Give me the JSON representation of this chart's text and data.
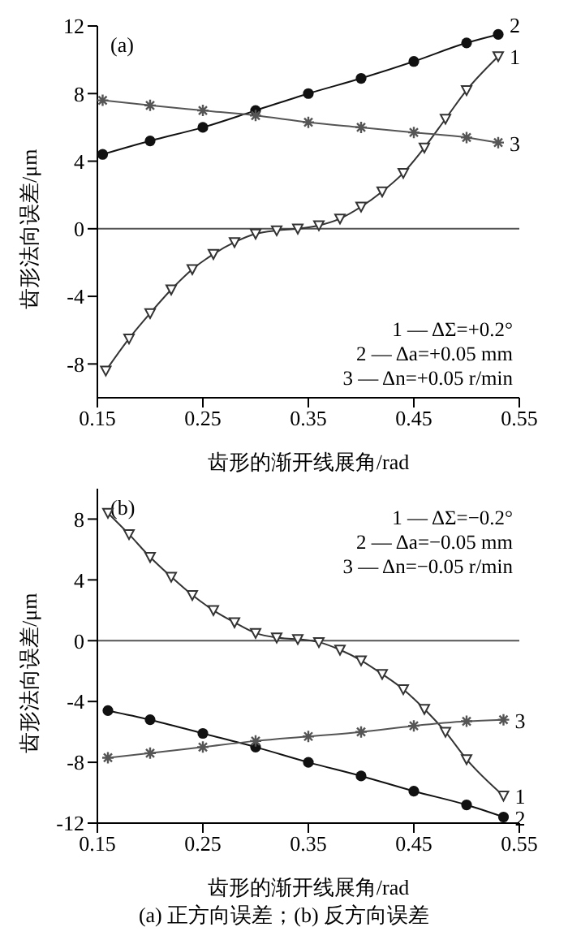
{
  "chart_data": [
    {
      "type": "line",
      "title": "(a)",
      "xlabel": "齿形的渐开线展角/rad",
      "ylabel": "齿形法向误差/μm",
      "xlim": [
        0.15,
        0.55
      ],
      "xticks": [
        0.15,
        0.25,
        0.35,
        0.45,
        0.55
      ],
      "ylim": [
        -10,
        12
      ],
      "yticks": [
        -8,
        -4,
        0,
        4,
        8,
        12
      ],
      "grid": false,
      "legend": false,
      "ref_lines": [
        {
          "axis": "y",
          "value": 0,
          "color": "#555555"
        }
      ],
      "annotations": [
        "1 — ΔΣ=+0.2°",
        "2 — Δa=+0.05 mm",
        "3 — Δn=+0.05 r/min"
      ],
      "series": [
        {
          "name": "1",
          "color": "#333333",
          "marker": "triangle",
          "x": [
            0.158,
            0.18,
            0.2,
            0.22,
            0.24,
            0.26,
            0.28,
            0.3,
            0.32,
            0.34,
            0.36,
            0.38,
            0.4,
            0.42,
            0.44,
            0.46,
            0.48,
            0.5,
            0.53
          ],
          "values": [
            -8.4,
            -6.5,
            -5.0,
            -3.6,
            -2.4,
            -1.5,
            -0.8,
            -0.3,
            -0.1,
            0.0,
            0.2,
            0.6,
            1.3,
            2.2,
            3.3,
            4.8,
            6.5,
            8.2,
            10.2
          ]
        },
        {
          "name": "2",
          "color": "#111111",
          "marker": "circle",
          "x": [
            0.155,
            0.2,
            0.25,
            0.3,
            0.35,
            0.4,
            0.45,
            0.5,
            0.53
          ],
          "values": [
            4.4,
            5.2,
            6.0,
            7.0,
            8.0,
            8.9,
            9.9,
            11.0,
            11.5
          ]
        },
        {
          "name": "3",
          "color": "#555555",
          "marker": "cross",
          "x": [
            0.155,
            0.2,
            0.25,
            0.3,
            0.35,
            0.4,
            0.45,
            0.5,
            0.53
          ],
          "values": [
            7.6,
            7.3,
            7.0,
            6.7,
            6.3,
            6.0,
            5.7,
            5.4,
            5.1
          ]
        }
      ]
    },
    {
      "type": "line",
      "title": "(b)",
      "xlabel": "齿形的渐开线展角/rad",
      "ylabel": "齿形法向误差/μm",
      "xlim": [
        0.15,
        0.55
      ],
      "xticks": [
        0.15,
        0.25,
        0.35,
        0.45,
        0.55
      ],
      "ylim": [
        -12,
        10
      ],
      "yticks": [
        -12,
        -8,
        -4,
        0,
        4,
        8
      ],
      "grid": false,
      "legend": false,
      "ref_lines": [
        {
          "axis": "y",
          "value": 0,
          "color": "#555555"
        }
      ],
      "annotations": [
        "1 — ΔΣ=−0.2°",
        "2 — Δa=−0.05 mm",
        "3 — Δn=−0.05 r/min",
        "(a) 正方向误差；(b) 反方向误差"
      ],
      "series": [
        {
          "name": "1",
          "color": "#333333",
          "marker": "triangle",
          "x": [
            0.16,
            0.18,
            0.2,
            0.22,
            0.24,
            0.26,
            0.28,
            0.3,
            0.32,
            0.34,
            0.36,
            0.38,
            0.4,
            0.42,
            0.44,
            0.46,
            0.48,
            0.5,
            0.535
          ],
          "values": [
            8.4,
            7.0,
            5.5,
            4.2,
            3.0,
            2.0,
            1.2,
            0.5,
            0.2,
            0.1,
            -0.1,
            -0.6,
            -1.3,
            -2.2,
            -3.2,
            -4.5,
            -6.0,
            -7.8,
            -10.2
          ]
        },
        {
          "name": "2",
          "color": "#111111",
          "marker": "circle",
          "x": [
            0.16,
            0.2,
            0.25,
            0.3,
            0.35,
            0.4,
            0.45,
            0.5,
            0.535
          ],
          "values": [
            -4.6,
            -5.2,
            -6.1,
            -7.0,
            -8.0,
            -8.9,
            -9.9,
            -10.8,
            -11.6
          ]
        },
        {
          "name": "3",
          "color": "#555555",
          "marker": "cross",
          "x": [
            0.16,
            0.2,
            0.25,
            0.3,
            0.35,
            0.4,
            0.45,
            0.5,
            0.535
          ],
          "values": [
            -7.7,
            -7.4,
            -7.0,
            -6.6,
            -6.3,
            -6.0,
            -5.6,
            -5.3,
            -5.2
          ]
        }
      ]
    }
  ]
}
